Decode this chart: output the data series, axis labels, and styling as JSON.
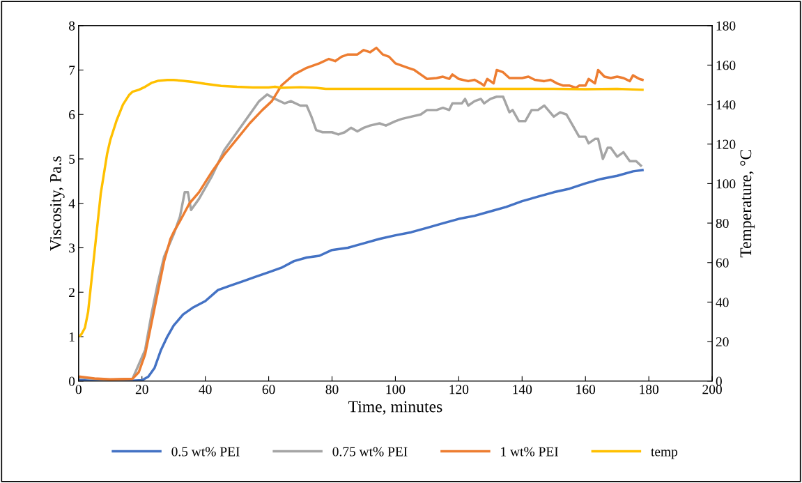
{
  "chart_data": {
    "type": "line",
    "xlabel": "Time, minutes",
    "ylabel": "Viscosity, Pa.s",
    "y2label": "Temperature, °C",
    "xlim": [
      0,
      200
    ],
    "xticks": [
      0,
      20,
      40,
      60,
      80,
      100,
      120,
      140,
      160,
      180,
      200
    ],
    "ylim": [
      0,
      8
    ],
    "yticks": [
      0,
      1,
      2,
      3,
      4,
      5,
      6,
      7,
      8
    ],
    "y2lim": [
      0,
      180
    ],
    "y2ticks": [
      0,
      20,
      40,
      60,
      80,
      100,
      120,
      140,
      160,
      180
    ],
    "grid": false,
    "legend": "bottom",
    "marker": "none",
    "line_style": "solid",
    "series": [
      {
        "name": "0.5 wt% PEI",
        "color": "#4472c4",
        "x": [
          0.5,
          5,
          10,
          15,
          20,
          22,
          24,
          26,
          28,
          30,
          33,
          36,
          40,
          44,
          48,
          52,
          56,
          60,
          64,
          68,
          72,
          76,
          80,
          85,
          90,
          95,
          100,
          105,
          110,
          115,
          120,
          125,
          130,
          135,
          140,
          145,
          150,
          155,
          160,
          165,
          170,
          175,
          178
        ],
        "values": [
          0.02,
          0.01,
          0.0,
          0.0,
          0.02,
          0.1,
          0.3,
          0.7,
          1.0,
          1.25,
          1.5,
          1.65,
          1.8,
          2.05,
          2.15,
          2.25,
          2.35,
          2.45,
          2.55,
          2.7,
          2.78,
          2.82,
          2.95,
          3.0,
          3.1,
          3.2,
          3.28,
          3.35,
          3.45,
          3.55,
          3.65,
          3.72,
          3.82,
          3.92,
          4.05,
          4.15,
          4.25,
          4.33,
          4.45,
          4.55,
          4.62,
          4.72,
          4.75
        ]
      },
      {
        "name": "0.75 wt% PEI",
        "color": "#a5a5a5",
        "x": [
          0.5,
          5,
          10,
          17,
          21,
          23,
          25,
          27,
          30,
          32,
          33.5,
          34.5,
          35.5,
          38,
          42,
          46,
          50,
          54,
          57,
          59.5,
          62,
          65,
          67,
          70,
          72,
          73.5,
          75,
          77,
          80,
          82,
          84,
          86,
          88,
          90,
          92,
          95,
          97,
          100,
          102,
          105,
          108,
          110,
          113,
          115,
          117,
          118,
          121,
          122,
          123,
          125,
          127,
          128,
          130,
          132,
          134,
          136,
          137,
          139,
          141,
          143,
          145,
          147,
          150,
          152,
          154,
          156,
          158,
          160,
          161,
          163,
          164,
          165.5,
          167,
          168,
          170,
          172,
          174,
          176,
          177.5
        ],
        "values": [
          0.08,
          0.05,
          0.03,
          0.05,
          0.7,
          1.5,
          2.2,
          2.8,
          3.3,
          3.7,
          4.25,
          4.25,
          3.85,
          4.1,
          4.6,
          5.2,
          5.6,
          6.0,
          6.3,
          6.45,
          6.35,
          6.25,
          6.3,
          6.2,
          6.2,
          5.95,
          5.65,
          5.6,
          5.6,
          5.55,
          5.6,
          5.7,
          5.62,
          5.7,
          5.75,
          5.8,
          5.75,
          5.85,
          5.9,
          5.95,
          6.0,
          6.1,
          6.1,
          6.15,
          6.1,
          6.25,
          6.25,
          6.35,
          6.2,
          6.3,
          6.35,
          6.25,
          6.35,
          6.4,
          6.4,
          6.05,
          6.1,
          5.85,
          5.85,
          6.1,
          6.1,
          6.2,
          5.95,
          6.05,
          6.0,
          5.75,
          5.5,
          5.5,
          5.35,
          5.45,
          5.45,
          5.0,
          5.25,
          5.25,
          5.05,
          5.15,
          4.95,
          4.95,
          4.85
        ]
      },
      {
        "name": "1 wt% PEI",
        "color": "#ed7d31",
        "x": [
          0.5,
          5,
          10,
          17,
          19,
          21,
          23,
          25,
          27,
          29,
          30,
          32,
          35,
          38,
          42,
          46,
          50,
          54,
          58,
          61,
          64,
          68,
          72,
          76,
          79,
          81,
          83,
          85,
          88,
          90,
          92,
          94,
          96,
          98,
          100,
          102,
          104,
          106,
          108,
          110,
          113,
          115,
          117,
          118,
          120,
          123,
          125,
          127,
          128,
          129,
          131,
          132,
          134,
          136,
          140,
          142,
          144,
          147,
          149,
          151,
          153,
          155,
          157,
          158,
          160,
          161,
          163,
          164,
          166,
          168,
          170,
          172,
          174,
          175,
          177,
          178
        ],
        "values": [
          0.1,
          0.06,
          0.04,
          0.05,
          0.2,
          0.6,
          1.3,
          2.0,
          2.7,
          3.2,
          3.35,
          3.6,
          4.0,
          4.25,
          4.7,
          5.1,
          5.45,
          5.8,
          6.1,
          6.3,
          6.65,
          6.9,
          7.05,
          7.15,
          7.25,
          7.2,
          7.3,
          7.35,
          7.35,
          7.45,
          7.4,
          7.5,
          7.35,
          7.3,
          7.15,
          7.1,
          7.05,
          7.0,
          6.9,
          6.8,
          6.82,
          6.85,
          6.8,
          6.9,
          6.8,
          6.75,
          6.78,
          6.7,
          6.65,
          6.8,
          6.7,
          7.0,
          6.95,
          6.82,
          6.82,
          6.85,
          6.78,
          6.75,
          6.78,
          6.7,
          6.65,
          6.65,
          6.6,
          6.65,
          6.65,
          6.8,
          6.7,
          7.0,
          6.85,
          6.82,
          6.85,
          6.82,
          6.75,
          6.88,
          6.8,
          6.78
        ]
      },
      {
        "name": "temp",
        "color": "#ffc000",
        "axis": "y2",
        "x": [
          0.5,
          1,
          2,
          3,
          4,
          5,
          6,
          7,
          8,
          9,
          10,
          12,
          14,
          16,
          17,
          19,
          21,
          23,
          25,
          28,
          30,
          33,
          36,
          40,
          45,
          50,
          55,
          60,
          62,
          64,
          70,
          75,
          78,
          100,
          150,
          160,
          170,
          178
        ],
        "values": [
          23,
          24,
          27,
          35,
          50,
          65,
          80,
          95,
          105,
          115,
          122,
          132,
          140,
          145,
          146.5,
          147.5,
          149,
          151,
          152,
          152.5,
          152.5,
          152,
          151.5,
          150.5,
          149.5,
          149,
          148.7,
          148.7,
          149,
          148.5,
          148.8,
          148.5,
          148,
          148,
          148,
          147.8,
          148,
          147.5
        ]
      }
    ]
  }
}
